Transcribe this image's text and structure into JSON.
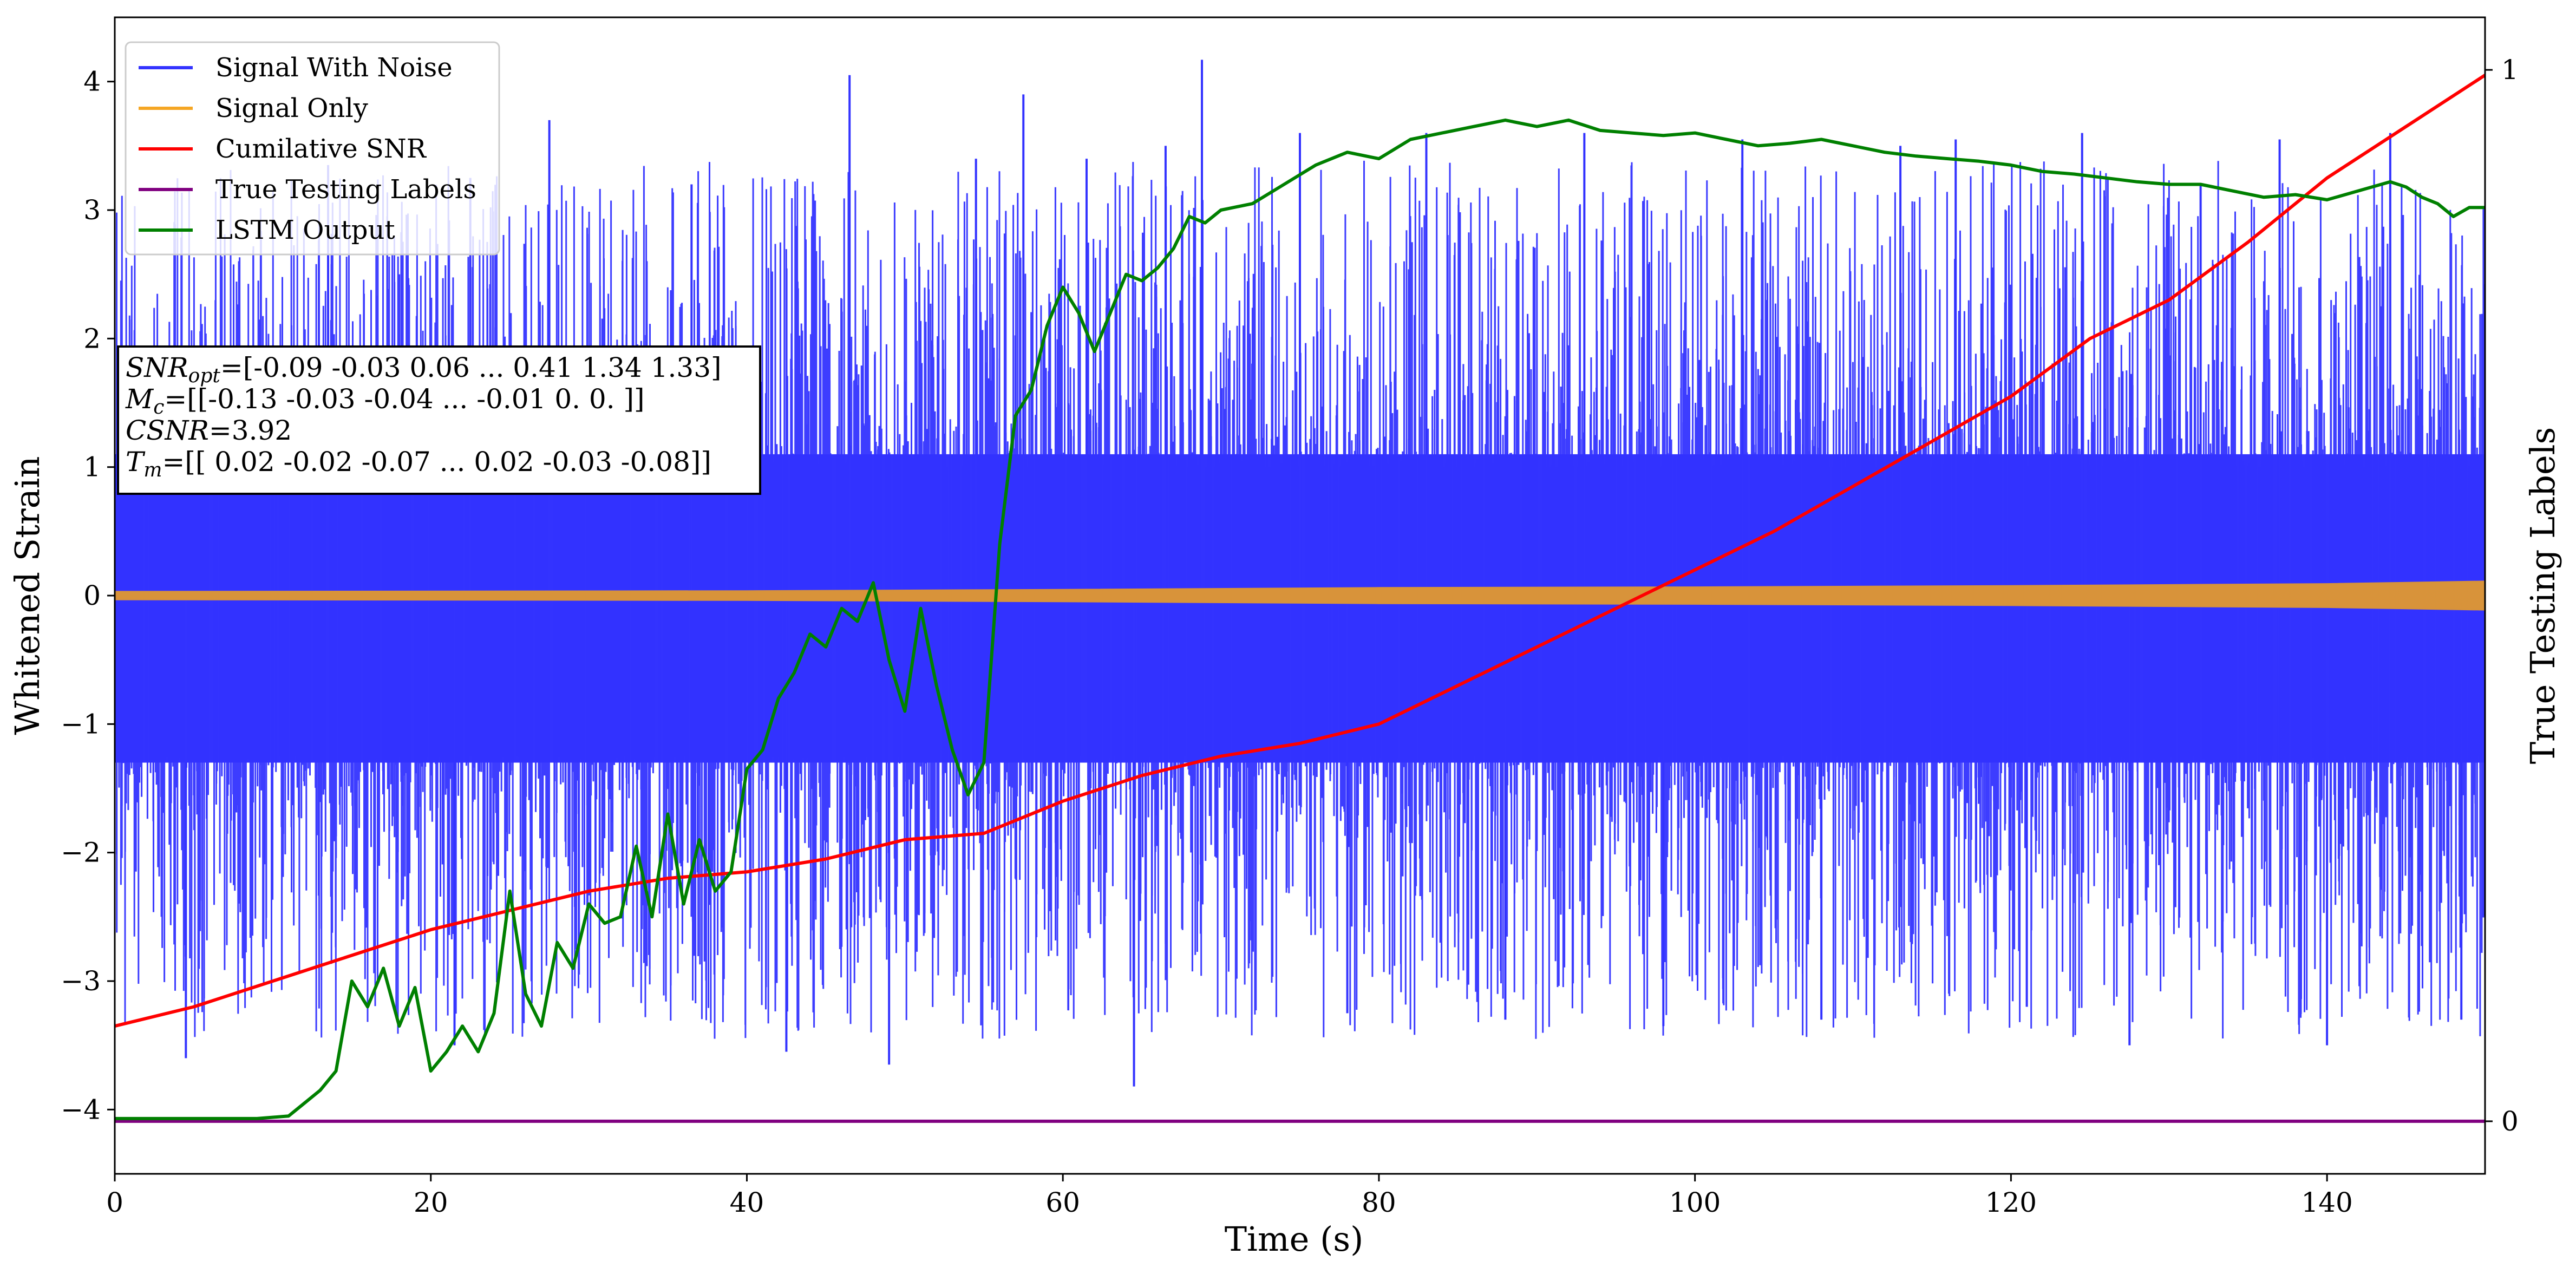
{
  "chart_data": {
    "type": "line",
    "xlabel": "Time (s)",
    "ylabel_left": "Whitened Strain",
    "ylabel_right": "True Testing Labels",
    "xlim": [
      0,
      150
    ],
    "ylim_left": [
      -4.5,
      4.5
    ],
    "ylim_right": [
      -0.05,
      1.05
    ],
    "x_ticks": [
      0,
      20,
      40,
      60,
      80,
      100,
      120,
      140
    ],
    "y_ticks_left": [
      -4,
      -3,
      -2,
      -1,
      0,
      1,
      2,
      3,
      4
    ],
    "y_ticks_right": [
      0,
      1
    ],
    "grid": false,
    "legend_position": "top-left",
    "legend": [
      {
        "name": "Signal With Noise",
        "color": "#3333ff"
      },
      {
        "name": "Signal Only",
        "color": "#f5a623"
      },
      {
        "name": "Cumilative SNR",
        "color": "#ff0000"
      },
      {
        "name": "True Testing Labels",
        "color": "#800080"
      },
      {
        "name": "LSTM Output",
        "color": "#008000"
      }
    ],
    "annotation": {
      "lines": [
        {
          "sym": "SNR",
          "sub": "opt",
          "text": "=[-0.09 -0.03  0.06 ...  0.41  1.34  1.33]"
        },
        {
          "sym": "M",
          "sub": "c",
          "text": "=[[-0.13 -0.03 -0.04 ... -0.01  0.    0.  ]]"
        },
        {
          "sym": "CSNR",
          "sub": "",
          "text": "=3.92"
        },
        {
          "sym": "T",
          "sub": "m",
          "text": "=[[ 0.02 -0.02 -0.07 ...  0.02 -0.03 -0.08]]"
        }
      ]
    },
    "series": [
      {
        "name": "Signal With Noise",
        "axis": "left",
        "color": "#3333ff",
        "rendering": "dense noise band",
        "x_range": [
          0,
          150
        ],
        "core_band": [
          -1.3,
          1.1
        ],
        "max": 4.17,
        "min": -3.84,
        "spikes": [
          [
            4.5,
            -3.6
          ],
          [
            13.5,
            3.35
          ],
          [
            21.5,
            -3.5
          ],
          [
            22.5,
            3.25
          ],
          [
            27.5,
            3.7
          ],
          [
            36.5,
            3.2
          ],
          [
            42.5,
            -3.55
          ],
          [
            46.5,
            4.05
          ],
          [
            49.0,
            -3.65
          ],
          [
            54.5,
            3.4
          ],
          [
            57.5,
            3.9
          ],
          [
            61.5,
            3.4
          ],
          [
            64.5,
            -3.82
          ],
          [
            66.5,
            3.5
          ],
          [
            68.8,
            4.17
          ],
          [
            75.0,
            3.6
          ],
          [
            78.0,
            -3.25
          ],
          [
            83.0,
            3.6
          ],
          [
            88.0,
            -3.3
          ],
          [
            93.0,
            3.6
          ],
          [
            98.0,
            -3.35
          ],
          [
            103.0,
            3.55
          ],
          [
            108.0,
            -3.3
          ],
          [
            113.0,
            3.5
          ],
          [
            116.5,
            3.55
          ],
          [
            121.0,
            -3.2
          ],
          [
            124.5,
            3.6
          ],
          [
            127.5,
            -3.5
          ],
          [
            132.0,
            3.2
          ],
          [
            137.0,
            3.55
          ],
          [
            140.0,
            -3.5
          ],
          [
            144.0,
            3.6
          ],
          [
            148.5,
            -3.3
          ]
        ]
      },
      {
        "name": "Signal Only",
        "axis": "left",
        "color": "#d8933a",
        "rendering": "oscillation envelope",
        "envelope": [
          [
            0,
            0.03
          ],
          [
            40,
            0.035
          ],
          [
            60,
            0.045
          ],
          [
            80,
            0.06
          ],
          [
            100,
            0.065
          ],
          [
            120,
            0.075
          ],
          [
            140,
            0.09
          ],
          [
            150,
            0.11
          ]
        ]
      },
      {
        "name": "Cumilative SNR",
        "axis": "left",
        "color": "#ff0000",
        "x": [
          0,
          5,
          10,
          15,
          20,
          25,
          30,
          35,
          40,
          45,
          50,
          55,
          60,
          65,
          70,
          75,
          80,
          85,
          90,
          95,
          100,
          105,
          110,
          115,
          120,
          125,
          130,
          135,
          140,
          145,
          150
        ],
        "y": [
          -3.35,
          -3.2,
          -3.0,
          -2.8,
          -2.6,
          -2.45,
          -2.3,
          -2.2,
          -2.15,
          -2.05,
          -1.9,
          -1.85,
          -1.6,
          -1.4,
          -1.25,
          -1.15,
          -1.0,
          -0.7,
          -0.4,
          -0.1,
          0.2,
          0.5,
          0.85,
          1.2,
          1.55,
          2.0,
          2.3,
          2.75,
          3.25,
          3.65,
          4.05
        ]
      },
      {
        "name": "True Testing Labels",
        "axis": "right",
        "color": "#800080",
        "x": [
          0,
          150
        ],
        "y": [
          0,
          0
        ]
      },
      {
        "name": "LSTM Output",
        "axis": "left",
        "color": "#008000",
        "x": [
          0,
          5,
          9,
          11,
          12,
          13,
          14,
          15,
          16,
          17,
          18,
          19,
          20,
          21,
          22,
          23,
          24,
          25,
          26,
          27,
          28,
          29,
          30,
          31,
          32,
          33,
          34,
          35,
          36,
          37,
          38,
          39,
          40,
          41,
          42,
          43,
          44,
          45,
          46,
          47,
          48,
          49,
          50,
          51,
          52,
          53,
          54,
          55,
          56,
          57,
          58,
          59,
          60,
          61,
          62,
          63,
          64,
          65,
          66,
          67,
          68,
          69,
          70,
          72,
          74,
          76,
          78,
          80,
          82,
          84,
          86,
          88,
          90,
          92,
          94,
          96,
          98,
          100,
          102,
          104,
          106,
          108,
          110,
          112,
          114,
          116,
          118,
          120,
          122,
          124,
          126,
          128,
          130,
          132,
          134,
          136,
          138,
          140,
          142,
          144,
          145,
          146,
          147,
          148,
          149,
          150
        ],
        "y": [
          -4.07,
          -4.07,
          -4.07,
          -4.05,
          -3.95,
          -3.85,
          -3.7,
          -3.0,
          -3.2,
          -2.9,
          -3.35,
          -3.05,
          -3.7,
          -3.55,
          -3.35,
          -3.55,
          -3.25,
          -2.3,
          -3.1,
          -3.35,
          -2.7,
          -2.9,
          -2.4,
          -2.55,
          -2.5,
          -1.95,
          -2.5,
          -1.7,
          -2.4,
          -1.9,
          -2.3,
          -2.15,
          -1.35,
          -1.2,
          -0.8,
          -0.6,
          -0.3,
          -0.4,
          -0.1,
          -0.2,
          0.1,
          -0.5,
          -0.9,
          -0.1,
          -0.7,
          -1.2,
          -1.55,
          -1.3,
          0.4,
          1.4,
          1.6,
          2.1,
          2.4,
          2.2,
          1.9,
          2.2,
          2.5,
          2.45,
          2.55,
          2.7,
          2.95,
          2.9,
          3.0,
          3.05,
          3.2,
          3.35,
          3.45,
          3.4,
          3.55,
          3.6,
          3.65,
          3.7,
          3.65,
          3.7,
          3.62,
          3.6,
          3.58,
          3.6,
          3.55,
          3.5,
          3.52,
          3.55,
          3.5,
          3.45,
          3.42,
          3.4,
          3.38,
          3.35,
          3.3,
          3.28,
          3.25,
          3.22,
          3.2,
          3.2,
          3.15,
          3.1,
          3.12,
          3.08,
          3.15,
          3.22,
          3.18,
          3.1,
          3.05,
          2.95,
          3.02,
          3.02
        ]
      }
    ]
  }
}
